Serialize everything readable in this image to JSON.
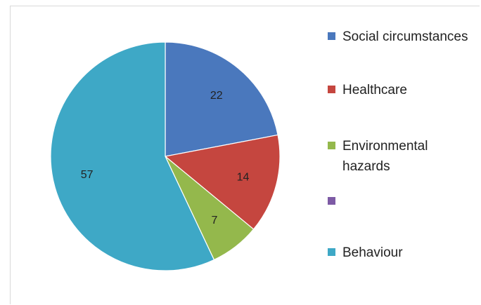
{
  "chart_data": {
    "type": "pie",
    "title": "",
    "start_angle_deg": 0,
    "direction": "clockwise",
    "slices": [
      {
        "label": "Social circumstances",
        "value": 22,
        "color": "#4a78bd"
      },
      {
        "label": "Healthcare",
        "value": 14,
        "color": "#c5463f"
      },
      {
        "label": "Environmental hazards",
        "value": 7,
        "color": "#94b84c"
      },
      {
        "label": "",
        "value": 0,
        "color": "#7d5aa5"
      },
      {
        "label": "Behaviour",
        "value": 57,
        "color": "#3ea8c6"
      }
    ],
    "data_labels": [
      "22",
      "14",
      "7",
      "57"
    ],
    "legend_position": "right"
  },
  "legend": {
    "items": [
      {
        "label": "Social circumstances",
        "color": "#4a78bd"
      },
      {
        "label": "Healthcare",
        "color": "#c5463f"
      },
      {
        "label": "Environmental hazards",
        "color": "#94b84c"
      },
      {
        "label": "",
        "color": "#7d5aa5"
      },
      {
        "label": "Behaviour",
        "color": "#3ea8c6"
      }
    ]
  }
}
